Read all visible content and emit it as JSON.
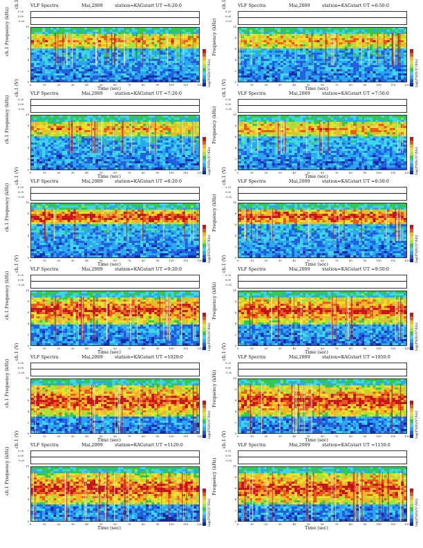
{
  "figure": {
    "kind": "VLF Spectra",
    "month": "Mai,2009",
    "station": "station=KAG",
    "channel": "ch.1 (V)",
    "spectrum_ylabel": "ch.1 Frequency (kHz)",
    "xlabel": "Time (sec)",
    "colorbar_label": "log(PSD)(V²/Hz)",
    "waveform_ticks": [
      "0.20",
      "0.00",
      "-0.20"
    ],
    "colorbar_ticks": [
      "",
      "-",
      "-"
    ],
    "freq_ticks": [
      "0",
      "2",
      "4",
      "6",
      "8",
      "10"
    ],
    "time_ticks": [
      "0",
      "10",
      "20",
      "30",
      "40",
      "50",
      "60",
      "70",
      "80",
      "90",
      "100",
      "110",
      "120"
    ]
  },
  "chart_data": [
    {
      "type": "heatmap",
      "title": "start UT =6:20:0",
      "xlabel": "Time (sec)",
      "ylabel": "ch.1 Frequency (kHz)",
      "xlim": [
        0,
        120
      ],
      "ylim": [
        0,
        10
      ],
      "emission_band_khz": [
        6,
        9
      ],
      "band_intensity": "moderate"
    },
    {
      "type": "heatmap",
      "title": "start UT =6:50:0",
      "xlabel": "Time (sec)",
      "ylabel": "Frequency (kHz)",
      "xlim": [
        0,
        120
      ],
      "ylim": [
        0,
        10
      ],
      "emission_band_khz": [
        6,
        9
      ],
      "band_intensity": "moderate"
    },
    {
      "type": "heatmap",
      "title": "start UT =7:20:0",
      "xlabel": "Time (sec)",
      "ylabel": "ch.1 Frequency (kHz)",
      "xlim": [
        0,
        120
      ],
      "ylim": [
        0,
        10
      ],
      "emission_band_khz": [
        6,
        9
      ],
      "band_intensity": "moderate"
    },
    {
      "type": "heatmap",
      "title": "start UT =7:50:0",
      "xlabel": "Time (sec)",
      "ylabel": "Frequency (kHz)",
      "xlim": [
        0,
        120
      ],
      "ylim": [
        0,
        10
      ],
      "emission_band_khz": [
        6,
        9
      ],
      "band_intensity": "moderate"
    },
    {
      "type": "heatmap",
      "title": "start UT =8:20:0",
      "xlabel": "Time (sec)",
      "ylabel": "ch.1 Frequency (kHz)",
      "xlim": [
        0,
        120
      ],
      "ylim": [
        0,
        10
      ],
      "emission_band_khz": [
        6,
        9
      ],
      "band_intensity": "strong"
    },
    {
      "type": "heatmap",
      "title": "start UT =8:50:0",
      "xlabel": "Time (sec)",
      "ylabel": "Frequency (kHz)",
      "xlim": [
        0,
        120
      ],
      "ylim": [
        0,
        10
      ],
      "emission_band_khz": [
        6,
        9
      ],
      "band_intensity": "strong"
    },
    {
      "type": "heatmap",
      "title": "start UT =9:20:0",
      "xlabel": "Time (sec)",
      "ylabel": "ch.1 Frequency (kHz)",
      "xlim": [
        0,
        120
      ],
      "ylim": [
        0,
        10
      ],
      "emission_band_khz": [
        4,
        9
      ],
      "band_intensity": "strong"
    },
    {
      "type": "heatmap",
      "title": "start UT =9:50:0",
      "xlabel": "Time (sec)",
      "ylabel": "Frequency (kHz)",
      "xlim": [
        0,
        120
      ],
      "ylim": [
        0,
        10
      ],
      "emission_band_khz": [
        4,
        9
      ],
      "band_intensity": "strong"
    },
    {
      "type": "heatmap",
      "title": "start UT =1020:0",
      "xlabel": "Time (sec)",
      "ylabel": "ch.1 Frequency (kHz)",
      "xlim": [
        0,
        120
      ],
      "ylim": [
        0,
        10
      ],
      "emission_band_khz": [
        3,
        9
      ],
      "band_intensity": "strong"
    },
    {
      "type": "heatmap",
      "title": "start UT =1050:0",
      "xlabel": "Time (sec)",
      "ylabel": "Frequency (kHz)",
      "xlim": [
        0,
        120
      ],
      "ylim": [
        0,
        10
      ],
      "emission_band_khz": [
        3,
        9
      ],
      "band_intensity": "strong"
    },
    {
      "type": "heatmap",
      "title": "start UT =1120:0",
      "xlabel": "Time (sec)",
      "ylabel": "ch.1 Frequency (kHz)",
      "xlim": [
        0,
        120
      ],
      "ylim": [
        0,
        10
      ],
      "emission_band_khz": [
        3,
        9
      ],
      "band_intensity": "strong"
    },
    {
      "type": "heatmap",
      "title": "start UT =1150:0",
      "xlabel": "Time (sec)",
      "ylabel": "Frequency (kHz)",
      "xlim": [
        0,
        120
      ],
      "ylim": [
        0,
        10
      ],
      "emission_band_khz": [
        3,
        9
      ],
      "band_intensity": "strong"
    }
  ]
}
